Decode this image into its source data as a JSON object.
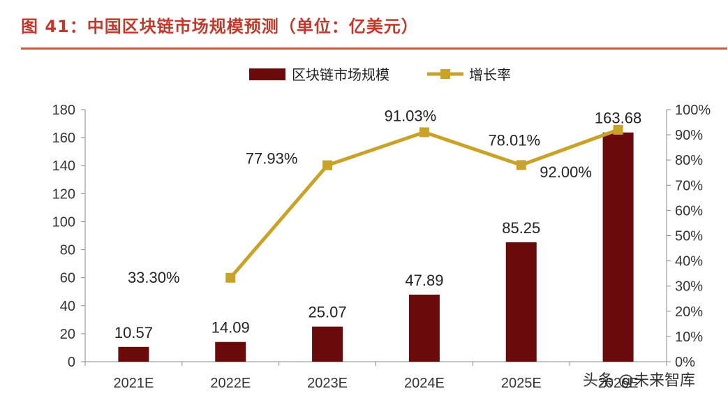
{
  "title": "图 41：中国区块链市场规模预测（单位：亿美元）",
  "watermark": "头条 @未来智库",
  "chart_data": {
    "type": "bar",
    "categories": [
      "2021E",
      "2022E",
      "2023E",
      "2024E",
      "2025E",
      "2026E"
    ],
    "series": [
      {
        "name": "区块链市场规模",
        "type": "bar",
        "axis": "left",
        "color": "#6b0a0a",
        "values": [
          10.57,
          14.09,
          25.07,
          47.89,
          85.25,
          163.68
        ],
        "labels": [
          "10.57",
          "14.09",
          "25.07",
          "47.89",
          "85.25",
          "163.68"
        ]
      },
      {
        "name": "增长率",
        "type": "line",
        "axis": "right",
        "color": "#c9a227",
        "values": [
          null,
          33.3,
          77.93,
          91.03,
          78.01,
          92.0
        ],
        "labels": [
          "",
          "33.30%",
          "77.93%",
          "91.03%",
          "78.01%",
          "92.00%"
        ]
      }
    ],
    "y_left": {
      "min": 0,
      "max": 180,
      "step": 20,
      "ticks": [
        "0",
        "20",
        "40",
        "60",
        "80",
        "100",
        "120",
        "140",
        "160",
        "180"
      ]
    },
    "y_right": {
      "min": 0,
      "max": 100,
      "step": 10,
      "ticks": [
        "0%",
        "10%",
        "20%",
        "30%",
        "40%",
        "50%",
        "60%",
        "70%",
        "80%",
        "90%",
        "100%"
      ]
    },
    "legend_position": "top-center",
    "grid": false
  }
}
